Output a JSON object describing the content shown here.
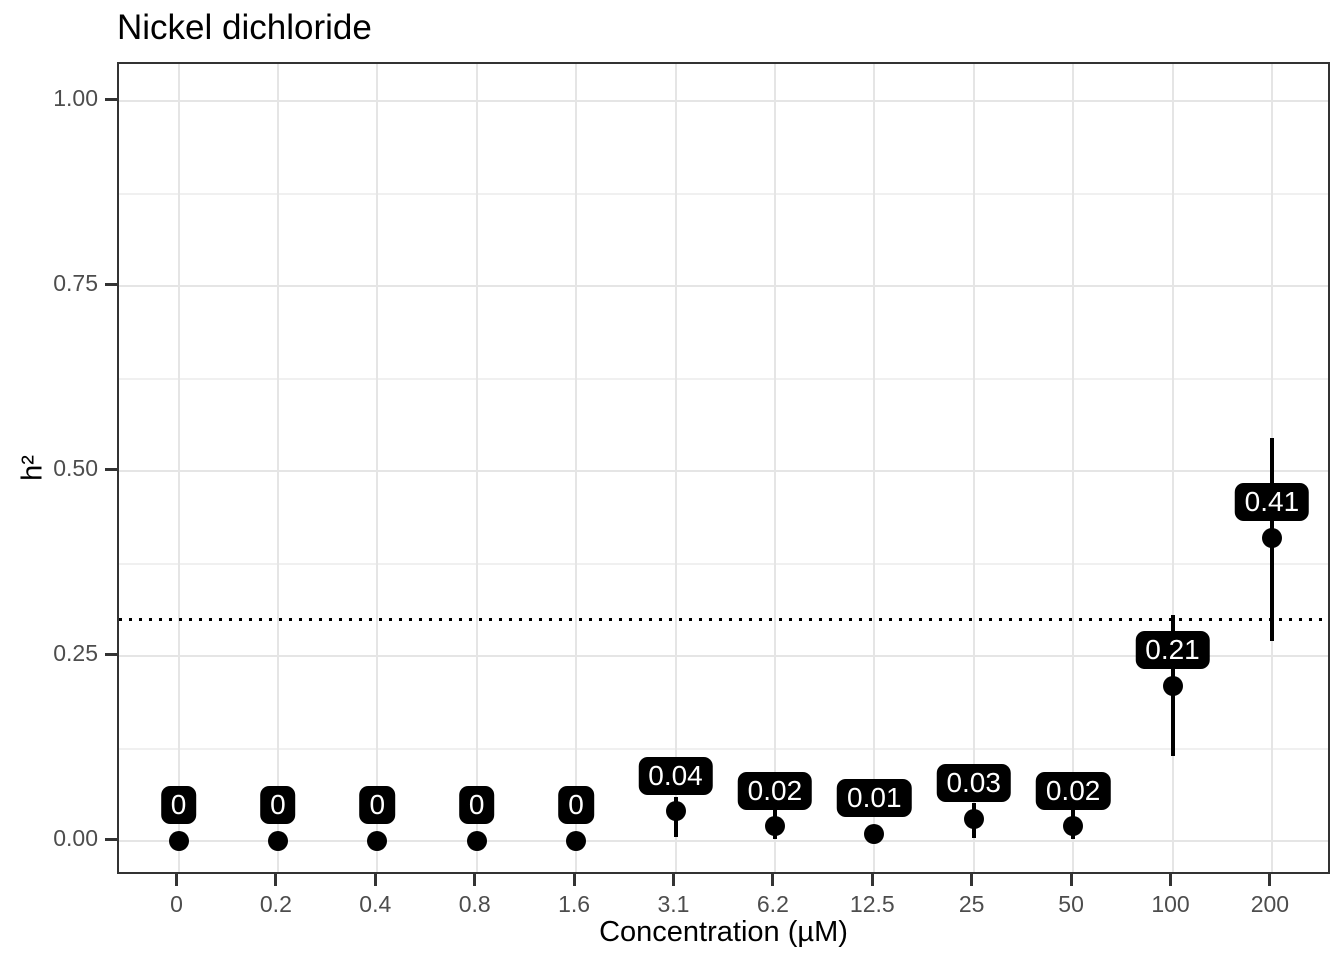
{
  "chart_data": {
    "type": "scatter",
    "title": "Nickel dichloride",
    "xlabel": "Concentration (µM)",
    "ylabel": "h²",
    "categories": [
      "0",
      "0.2",
      "0.4",
      "0.8",
      "1.6",
      "3.1",
      "6.2",
      "12.5",
      "25",
      "50",
      "100",
      "200"
    ],
    "values": [
      0,
      0,
      0,
      0,
      0,
      0.04,
      0.02,
      0.01,
      0.03,
      0.02,
      0.21,
      0.41
    ],
    "point_labels": [
      "0",
      "0",
      "0",
      "0",
      "0",
      "0.04",
      "0.02",
      "0.01",
      "0.03",
      "0.02",
      "0.21",
      "0.41"
    ],
    "error_low": [
      null,
      null,
      null,
      null,
      null,
      0.005,
      0.003,
      null,
      0.004,
      0.003,
      0.115,
      0.27
    ],
    "error_high": [
      null,
      null,
      null,
      null,
      null,
      0.06,
      0.046,
      null,
      0.052,
      0.043,
      0.305,
      0.545
    ],
    "reference_line": {
      "y": 0.3,
      "style": "dotted"
    },
    "y_ticks": {
      "labels": [
        "0.00",
        "0.25",
        "0.50",
        "0.75",
        "1.00"
      ],
      "values": [
        0,
        0.25,
        0.5,
        0.75,
        1.0
      ]
    },
    "y_minor_gridlines": [
      0.125,
      0.375,
      0.625,
      0.875
    ],
    "ylim": [
      -0.05,
      1.05
    ],
    "grid": true,
    "legend": "none",
    "colors": {
      "point": "#000000",
      "error_bar": "#000000",
      "label_bg": "#000000",
      "label_text": "#ffffff",
      "grid_major": "#e5e5e5",
      "grid_minor": "#f0f0f0",
      "panel_border": "#333333",
      "tick": "#333333",
      "tick_label": "#4d4d4d",
      "title": "#000000",
      "reference_line": "#000000",
      "background": "#ffffff"
    }
  }
}
